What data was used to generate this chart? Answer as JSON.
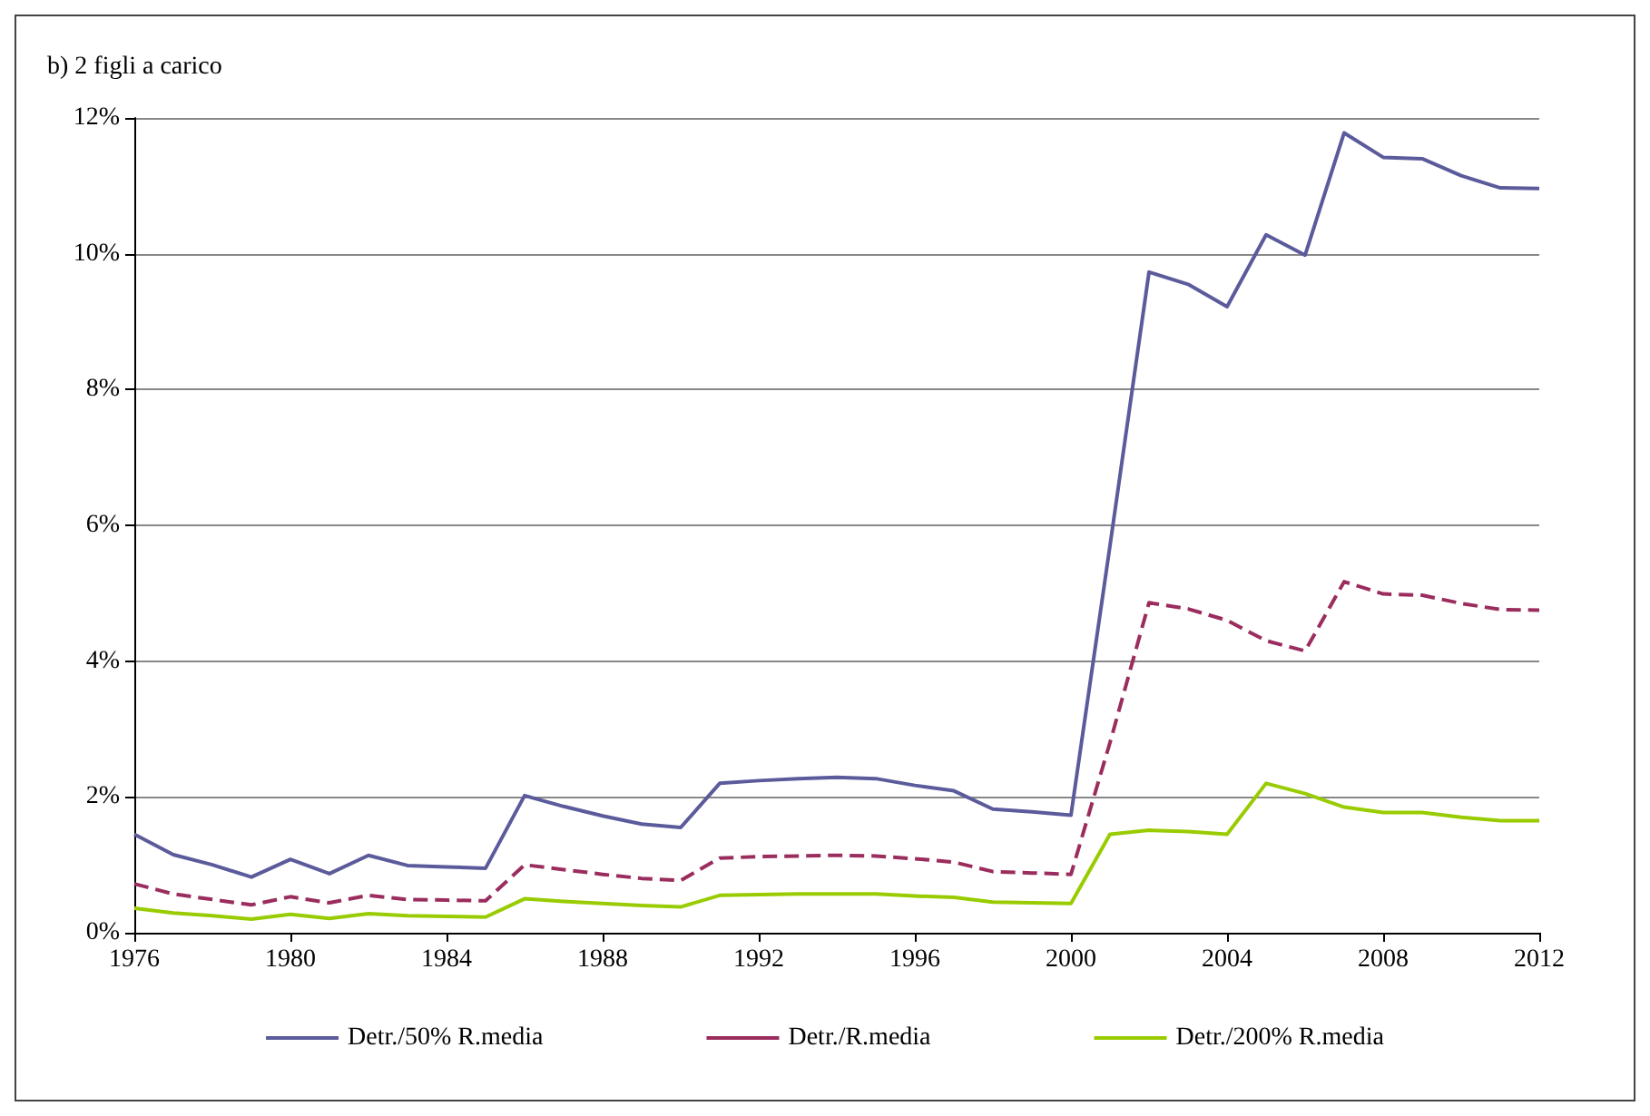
{
  "chart_data": {
    "type": "line",
    "title": "b) 2 figli a carico",
    "x": [
      1976,
      1977,
      1978,
      1979,
      1980,
      1981,
      1982,
      1983,
      1984,
      1985,
      1986,
      1987,
      1988,
      1989,
      1990,
      1991,
      1992,
      1993,
      1994,
      1995,
      1996,
      1997,
      1998,
      1999,
      2000,
      2001,
      2002,
      2003,
      2004,
      2005,
      2006,
      2007,
      2008,
      2009,
      2010,
      2011,
      2012
    ],
    "series": [
      {
        "name": "Detr./50% R.media",
        "color": "#5b5b9c",
        "line_style": "solid",
        "values": [
          1.45,
          1.15,
          1.0,
          0.82,
          1.08,
          0.87,
          1.14,
          0.99,
          0.97,
          0.95,
          2.02,
          1.86,
          1.72,
          1.6,
          1.55,
          2.2,
          2.24,
          2.27,
          2.29,
          2.27,
          2.17,
          2.09,
          1.82,
          1.78,
          1.73,
          5.7,
          9.73,
          9.55,
          9.22,
          10.28,
          9.98,
          11.78,
          11.42,
          11.4,
          11.15,
          10.97,
          10.96
        ]
      },
      {
        "name": "Detr./R.media",
        "color": "#9b2d5e",
        "line_style": "dashed",
        "values": [
          0.72,
          0.57,
          0.49,
          0.41,
          0.53,
          0.44,
          0.55,
          0.49,
          0.48,
          0.47,
          1.0,
          0.93,
          0.86,
          0.8,
          0.77,
          1.1,
          1.12,
          1.13,
          1.14,
          1.13,
          1.09,
          1.04,
          0.9,
          0.88,
          0.86,
          2.8,
          4.86,
          4.77,
          4.6,
          4.3,
          4.15,
          5.17,
          4.99,
          4.97,
          4.85,
          4.76,
          4.75
        ]
      },
      {
        "name": "Detr./200% R.media",
        "color": "#99cc00",
        "line_style": "solid",
        "values": [
          0.36,
          0.29,
          0.25,
          0.2,
          0.27,
          0.21,
          0.28,
          0.25,
          0.24,
          0.23,
          0.5,
          0.46,
          0.43,
          0.4,
          0.38,
          0.55,
          0.56,
          0.57,
          0.57,
          0.57,
          0.54,
          0.52,
          0.45,
          0.44,
          0.43,
          1.45,
          1.51,
          1.49,
          1.45,
          2.2,
          2.05,
          1.85,
          1.77,
          1.77,
          1.7,
          1.65,
          1.65
        ]
      }
    ],
    "xlim": [
      1976,
      2012
    ],
    "xticks": [
      1976,
      1980,
      1984,
      1988,
      1992,
      1996,
      2000,
      2004,
      2008,
      2012
    ],
    "ylim": [
      0,
      12
    ],
    "yticks": [
      {
        "value": 0,
        "label": "0%"
      },
      {
        "value": 2,
        "label": "2%"
      },
      {
        "value": 4,
        "label": "4%"
      },
      {
        "value": 6,
        "label": "6%"
      },
      {
        "value": 8,
        "label": "8%"
      },
      {
        "value": 10,
        "label": "10%"
      },
      {
        "value": 12,
        "label": "12%"
      }
    ],
    "grid": "y",
    "legend": "bottom",
    "marker": "none"
  }
}
